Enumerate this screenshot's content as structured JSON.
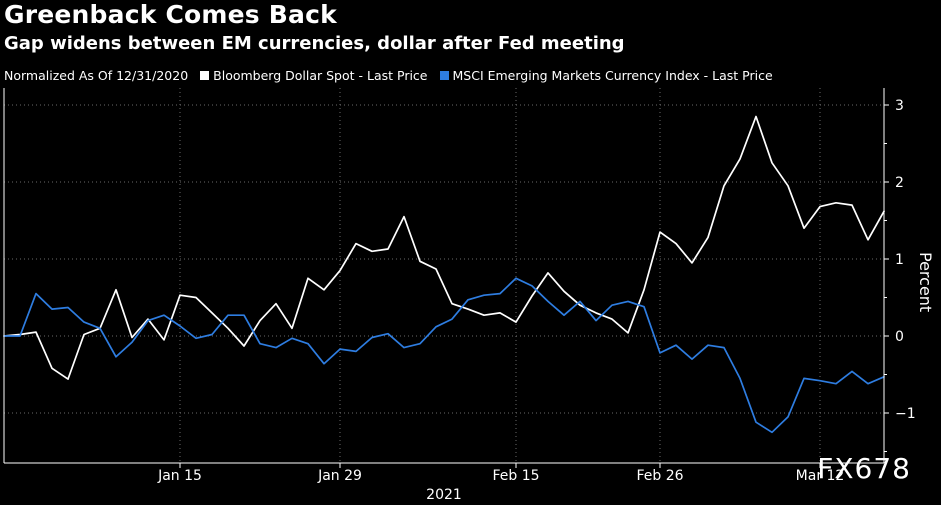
{
  "header": {
    "title": "Greenback Comes Back",
    "subtitle": "Gap widens between EM currencies, dollar after Fed meeting",
    "legend_prefix": "Normalized As Of 12/31/2020"
  },
  "watermark": "FX678",
  "colors": {
    "background": "#000000",
    "dollar": "#ffffff",
    "em": "#2e7de1",
    "axis": "#ffffff"
  },
  "chart_data": {
    "type": "line",
    "title": "Greenback Comes Back",
    "subtitle": "Gap widens between EM currencies, dollar after Fed meeting",
    "xlabel": "2021",
    "ylabel": "Percent",
    "ylim": [
      -1.6,
      3.2
    ],
    "yticks": [
      -1,
      0,
      1,
      2,
      3
    ],
    "x_range": [
      0,
      54
    ],
    "x_tick_positions": [
      11,
      21,
      32,
      41,
      51
    ],
    "x_tick_labels": [
      "Jan 15",
      "Jan 29",
      "Feb 15",
      "Feb 26",
      "Mar 12"
    ],
    "x_year_label": "2021",
    "legend_position": "top-left",
    "series": [
      {
        "name": "Bloomberg Dollar Spot - Last Price",
        "color": "#ffffff",
        "values": [
          0.0,
          0.02,
          0.05,
          -0.42,
          -0.56,
          0.02,
          0.1,
          0.6,
          -0.02,
          0.22,
          -0.05,
          0.53,
          0.5,
          0.3,
          0.1,
          -0.13,
          0.2,
          0.42,
          0.1,
          0.75,
          0.6,
          0.85,
          1.2,
          1.1,
          1.13,
          1.55,
          0.97,
          0.87,
          0.42,
          0.35,
          0.27,
          0.3,
          0.18,
          0.52,
          0.82,
          0.58,
          0.4,
          0.3,
          0.22,
          0.04,
          0.6,
          1.35,
          1.2,
          0.95,
          1.28,
          1.95,
          2.3,
          2.85,
          2.25,
          1.95,
          1.4,
          1.68,
          1.73,
          1.7,
          1.25,
          1.62
        ]
      },
      {
        "name": "MSCI Emerging Markets Currency Index - Last Price",
        "color": "#2e7de1",
        "values": [
          0.0,
          0.0,
          0.55,
          0.35,
          0.37,
          0.18,
          0.1,
          -0.27,
          -0.08,
          0.2,
          0.27,
          0.13,
          -0.03,
          0.02,
          0.27,
          0.27,
          -0.1,
          -0.15,
          -0.03,
          -0.1,
          -0.36,
          -0.17,
          -0.2,
          -0.02,
          0.03,
          -0.15,
          -0.1,
          0.12,
          0.22,
          0.47,
          0.53,
          0.55,
          0.75,
          0.65,
          0.45,
          0.27,
          0.45,
          0.2,
          0.4,
          0.45,
          0.38,
          -0.22,
          -0.12,
          -0.3,
          -0.12,
          -0.15,
          -0.55,
          -1.12,
          -1.25,
          -1.05,
          -0.55,
          -0.58,
          -0.62,
          -0.46,
          -0.62,
          -0.53
        ]
      }
    ]
  }
}
